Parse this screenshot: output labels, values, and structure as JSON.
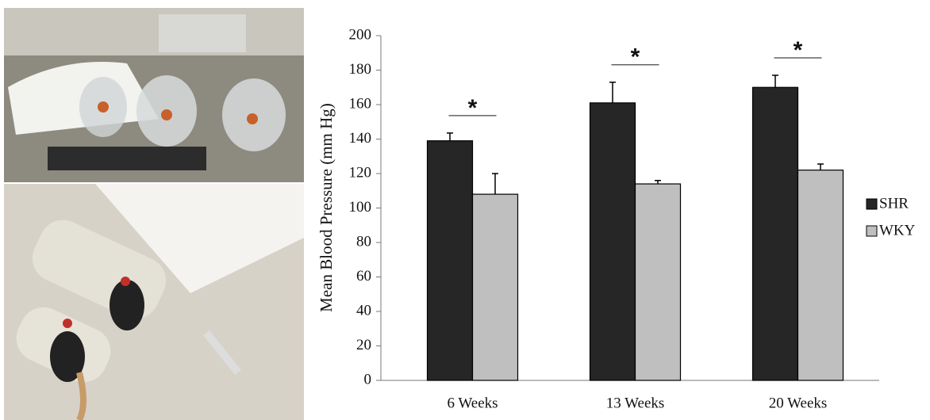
{
  "chart_data": {
    "type": "bar",
    "y_label": "Mean Blood Pressure (mm Hg)",
    "categories": [
      "6 Weeks",
      "13 Weeks",
      "20 Weeks"
    ],
    "series": [
      {
        "name": "SHR",
        "color": "#262626",
        "values": [
          139,
          161,
          170
        ],
        "errors": [
          4.5,
          12,
          7
        ]
      },
      {
        "name": "WKY",
        "color": "#bfbfbf",
        "values": [
          108,
          114,
          122
        ],
        "errors": [
          12,
          2,
          3.5
        ]
      }
    ],
    "annotations": [
      "*",
      "*",
      "*"
    ],
    "ylim": [
      0,
      200
    ],
    "yticks": [
      0,
      20,
      40,
      60,
      80,
      100,
      120,
      140,
      160,
      180,
      200
    ],
    "legend": "right"
  }
}
